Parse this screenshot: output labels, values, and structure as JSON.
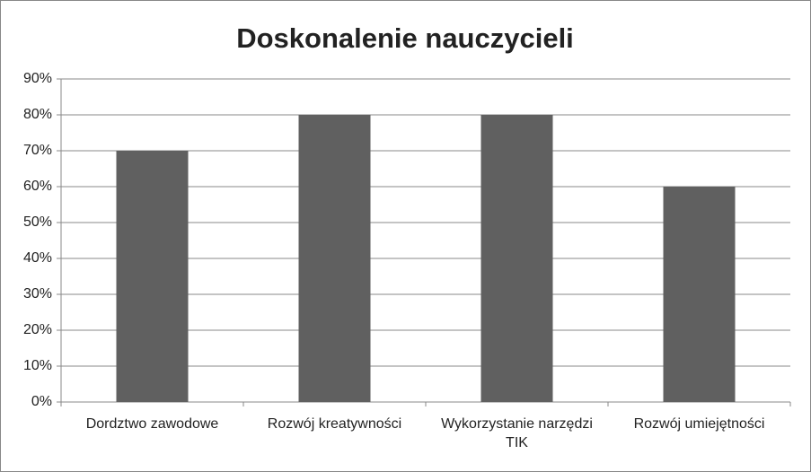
{
  "chart_data": {
    "type": "bar",
    "title": "Doskonalenie nauczycieli",
    "categories": [
      "Dordztwo zawodowe",
      "Rozwój kreatywności",
      "Wykorzystanie narzędzi TIK",
      "Rozwój umiejętności"
    ],
    "values": [
      70,
      80,
      80,
      60
    ],
    "color": "#606060",
    "ylim": [
      0,
      90
    ],
    "yticks": [
      {
        "value": 0,
        "label": "0%"
      },
      {
        "value": 10,
        "label": "10%"
      },
      {
        "value": 20,
        "label": "20%"
      },
      {
        "value": 30,
        "label": "30%"
      },
      {
        "value": 40,
        "label": "40%"
      },
      {
        "value": 50,
        "label": "50%"
      },
      {
        "value": 60,
        "label": "60%"
      },
      {
        "value": 70,
        "label": "70%"
      },
      {
        "value": 80,
        "label": "80%"
      },
      {
        "value": 90,
        "label": "90%"
      }
    ],
    "grid": true
  }
}
